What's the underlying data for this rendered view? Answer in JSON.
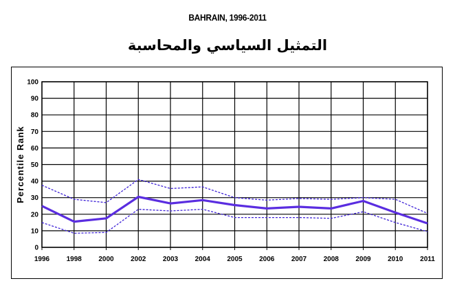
{
  "title": "BAHRAIN, 1996-2011",
  "subtitle": "التمثيل السياسي والمحاسبة",
  "chart_data": {
    "type": "line",
    "x": [
      "1996",
      "1998",
      "2000",
      "2002",
      "2003",
      "2004",
      "2005",
      "2006",
      "2007",
      "2008",
      "2009",
      "2010",
      "2011"
    ],
    "ylabel": "Percentile Rank",
    "xlabel": "",
    "ylim": [
      0,
      100
    ],
    "yticks": [
      0,
      10,
      20,
      30,
      40,
      50,
      60,
      70,
      80,
      90,
      100
    ],
    "grid": true,
    "series": [
      {
        "role": "estimate",
        "style": "solid",
        "color": "#5a2de0",
        "values": [
          25,
          15.5,
          17.5,
          30.5,
          26.5,
          28.5,
          25.5,
          23.5,
          24.5,
          23.5,
          28,
          21,
          14.5
        ]
      },
      {
        "role": "upper-bound",
        "style": "dashed",
        "color": "#3b1fd6",
        "values": [
          37.5,
          29,
          27,
          41,
          35.5,
          36.5,
          30,
          28.5,
          29.5,
          29,
          30,
          29,
          20.5
        ]
      },
      {
        "role": "lower-bound",
        "style": "dashed",
        "color": "#3b1fd6",
        "values": [
          15,
          8.5,
          9,
          23,
          22,
          23,
          18,
          18,
          18,
          17.5,
          21.5,
          15,
          9.5
        ]
      }
    ]
  }
}
